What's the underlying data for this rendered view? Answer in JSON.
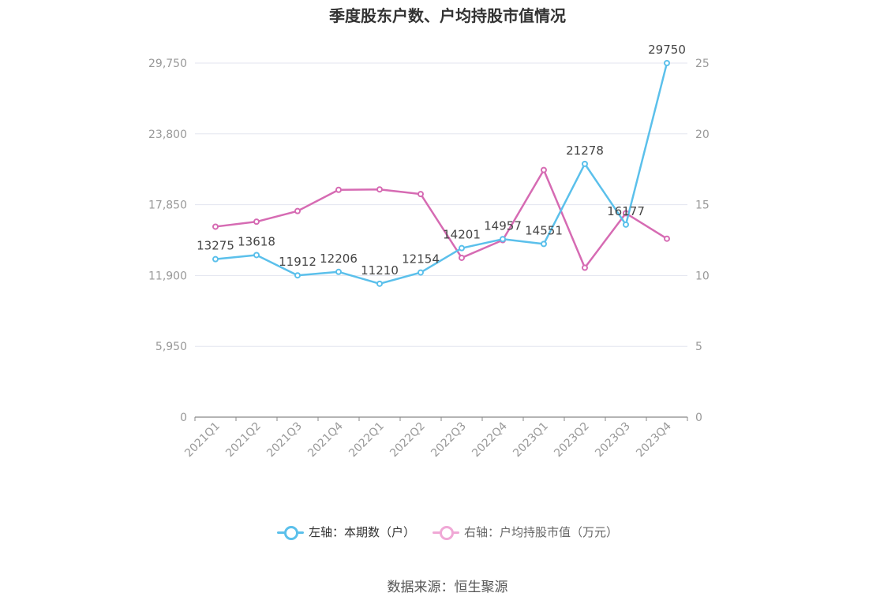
{
  "title": "季度股东户数、户均持股市值情况",
  "source": "数据来源：恒生聚源",
  "colors": {
    "left_series": "#5bc0eb",
    "right_series": "#d66bb3",
    "grid": "#e3e5ef",
    "axis": "#999999",
    "tick_text": "#999999",
    "label_text": "#444444"
  },
  "legend": [
    {
      "label": "左轴：本期数（户）",
      "color": "#5bc0eb"
    },
    {
      "label": "右轴：户均持股市值（万元）",
      "color": "#f0a8d6"
    }
  ],
  "chart_data": {
    "type": "line",
    "title": "季度股东户数、户均持股市值情况",
    "categories": [
      "2021Q1",
      "2021Q2",
      "2021Q3",
      "2021Q4",
      "2022Q1",
      "2022Q2",
      "2022Q3",
      "2022Q4",
      "2023Q1",
      "2023Q2",
      "2023Q3",
      "2023Q4"
    ],
    "left_axis": {
      "ticks": [
        0,
        5950,
        11900,
        17850,
        23800,
        29750
      ],
      "tick_labels": [
        "0",
        "5,950",
        "11,900",
        "17,850",
        "23,800",
        "29,750"
      ],
      "ylim": [
        0,
        29750
      ]
    },
    "right_axis": {
      "ticks": [
        0,
        5,
        10,
        15,
        20,
        25
      ],
      "tick_labels": [
        "0",
        "5",
        "10",
        "15",
        "20",
        "25"
      ],
      "ylim": [
        0,
        25
      ]
    },
    "grid": true,
    "legend_position": "bottom",
    "series": [
      {
        "name": "本期数（户）",
        "axis": "left",
        "values": [
          13275,
          13618,
          11912,
          12206,
          11210,
          12154,
          14201,
          14957,
          14551,
          21278,
          16177,
          29750
        ],
        "labels": [
          "13275",
          "13618",
          "11912",
          "12206",
          "11210",
          "12154",
          "14201",
          "14957",
          "14551",
          "21278",
          "16177",
          "29750"
        ]
      },
      {
        "name": "户均持股市值（万元）",
        "axis": "right",
        "values": [
          13.45,
          13.8,
          14.55,
          16.05,
          16.08,
          15.75,
          11.25,
          12.5,
          17.45,
          10.55,
          14.4,
          12.6
        ]
      }
    ]
  }
}
